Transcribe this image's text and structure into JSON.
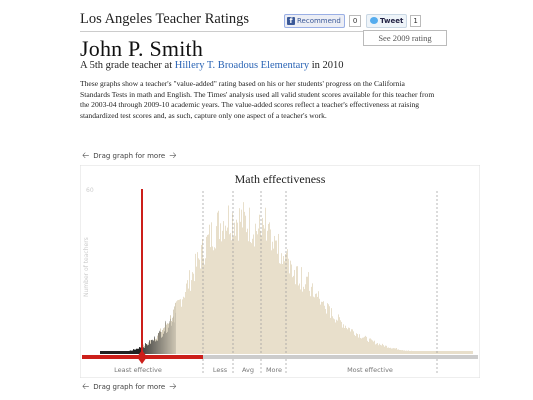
{
  "header": {
    "site_title": "Los Angeles Teacher Ratings",
    "facebook": {
      "label": "Recommend",
      "count": "0",
      "icon": "facebook-icon"
    },
    "twitter": {
      "label": "Tweet",
      "count": "1",
      "icon": "twitter-icon"
    },
    "see_2009_label": "See 2009 rating"
  },
  "teacher": {
    "name": "John P. Smith",
    "subtitle_prefix": "A 5th grade teacher at ",
    "school": "Hillery T. Broadous Elementary",
    "subtitle_suffix": " in 2010"
  },
  "description": "These graphs show a teacher's \"value-added\" rating based on his or her students' progress on the California Standards Tests in math and English. The Times' analysis used all valid student scores available for this teacher from the 2003-04 through 2009-10 academic years. The value-added scores reflect a teacher's effectiveness at raising standardized test scores and, as such, capture only one aspect of a teacher's work.",
  "drag_hint": "Drag graph for more",
  "chart_data": {
    "type": "bar",
    "title": "Math effectiveness",
    "ylabel": "Number of teachers",
    "y_tick_top": "60",
    "category_labels": [
      "Least effective",
      "Less",
      "Avg",
      "More",
      "Most effective"
    ],
    "teacher_marker_label": "",
    "colors": {
      "below_teacher": "#222222",
      "distribution": "#e8dfcb",
      "teacher_line": "#cc1f1a",
      "slider_track": "#cccccc",
      "dashed_lines": "#999999"
    }
  }
}
